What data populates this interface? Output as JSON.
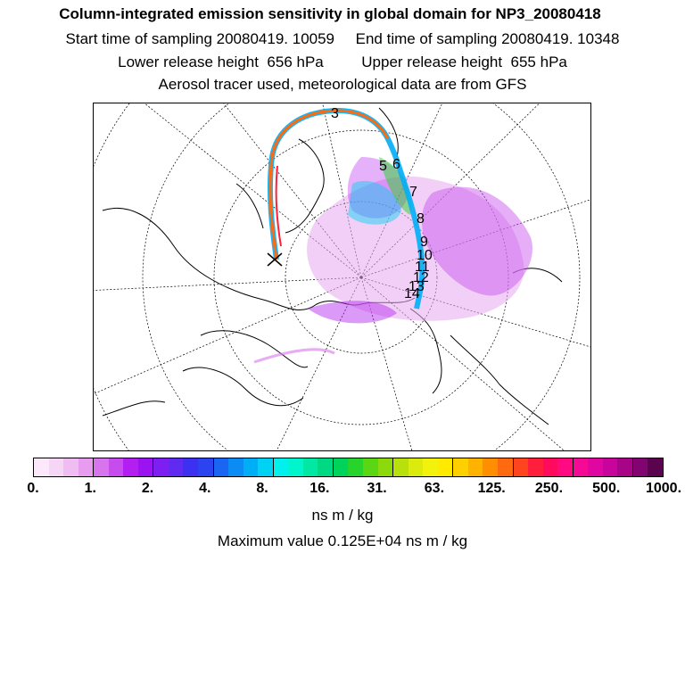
{
  "header": {
    "title": "Column-integrated emission sensitivity in global domain for NP3_20080418",
    "line2": "Start time of sampling 20080419. 10059     End time of sampling 20080419. 10348",
    "line3": "Lower release height  656 hPa         Upper release height  655 hPa",
    "line4": "Aerosol tracer used, meteorological data are from GFS"
  },
  "map": {
    "trajectory_labels": [
      "3",
      "5",
      "6",
      "7",
      "8",
      "9",
      "10",
      "11",
      "12",
      "13",
      "14"
    ]
  },
  "colorbar": {
    "colors": [
      "#fbe9fb",
      "#f6d6f7",
      "#f0bdf3",
      "#e79cef",
      "#d874ec",
      "#c64ced",
      "#b21ff0",
      "#9a13f0",
      "#7d1ff0",
      "#5f2bf0",
      "#3e30f0",
      "#2c44f0",
      "#1a66f2",
      "#0b8cf4",
      "#00aef6",
      "#00d2f4",
      "#00f0ec",
      "#00f5cc",
      "#00e8a4",
      "#00d884",
      "#00d35c",
      "#26d42c",
      "#5ad614",
      "#8cd90c",
      "#b8e00c",
      "#dceb0e",
      "#f2f20c",
      "#ffea00",
      "#ffd000",
      "#ffb200",
      "#ff8f00",
      "#ff6a10",
      "#ff4420",
      "#ff1f3c",
      "#ff0a5c",
      "#ff0a80",
      "#f50a96",
      "#e006a0",
      "#c8049c",
      "#a80488",
      "#820470",
      "#5a0450"
    ],
    "tick_labels": [
      "0.",
      "1.",
      "2.",
      "4.",
      "8.",
      "16.",
      "31.",
      "63.",
      "125.",
      "250.",
      "500.",
      "1000."
    ],
    "unit": "ns m / kg"
  },
  "footer": {
    "max_value": "Maximum value  0.125E+04 ns m / kg"
  }
}
